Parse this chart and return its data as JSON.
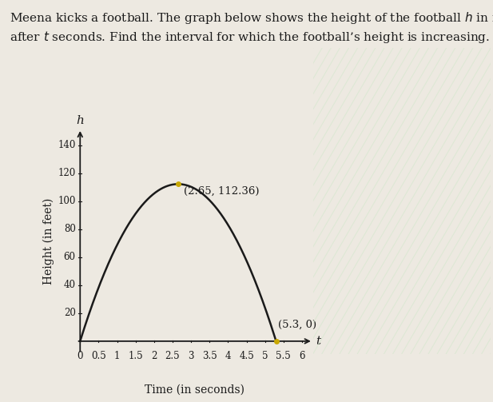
{
  "h_label": "h",
  "t_label": "t",
  "xlabel": "Time (in seconds)",
  "ylabel": "Height (in feet)",
  "peak_point": [
    2.65,
    112.36
  ],
  "peak_label": "(2.65, 112.36)",
  "zero_point": [
    5.3,
    0
  ],
  "zero_label": "(5.3, 0)",
  "yticks": [
    20,
    40,
    60,
    80,
    100,
    120,
    140
  ],
  "xticks": [
    0,
    0.5,
    1,
    1.5,
    2,
    2.5,
    3,
    3.5,
    4,
    4.5,
    5,
    5.5,
    6
  ],
  "xtick_labels": [
    "0",
    "0.5",
    "1",
    "1.5",
    "2",
    "2.5",
    "3",
    "3.5",
    "4",
    "4.5",
    "5",
    "5.5",
    "6"
  ],
  "xlim": [
    -0.1,
    6.3
  ],
  "ylim": [
    -9,
    152
  ],
  "curve_color": "#1a1a1a",
  "point_color": "#c8a800",
  "background_color": "#ede9e1",
  "stripe_color": "#d8e8d0",
  "text_color": "#1a1a1a",
  "font_size_axis_label": 10,
  "font_size_tick": 8.5,
  "font_size_annotation": 9.5,
  "text_block": "Meena kicks a football. The graph below shows the height of the football $h$ in feet\nafter $t$ seconds. Find the interval for which the football’s height is increasing.",
  "text_fontsize": 11
}
